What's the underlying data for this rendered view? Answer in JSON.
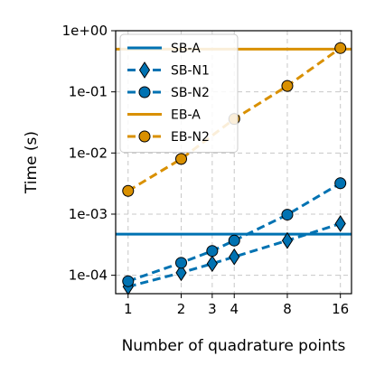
{
  "chart_data": {
    "type": "line",
    "xlabel": "Number of quadrature points",
    "ylabel": "Time (s)",
    "x_scale": "log2",
    "y_scale": "log10",
    "xlim": [
      0.85,
      18.5
    ],
    "ylim": [
      5e-05,
      1.0
    ],
    "x_ticks": [
      1,
      2,
      3,
      4,
      8,
      16
    ],
    "x_tick_labels": [
      "1",
      "2",
      "3",
      "4",
      "8",
      "16"
    ],
    "y_ticks": [
      0.0001,
      0.001,
      0.01,
      0.1,
      1.0
    ],
    "y_tick_labels": [
      "1e-04",
      "1e-03",
      "1e-02",
      "1e-01",
      "1e+00"
    ],
    "grid": true,
    "legend_position": "top-left",
    "colors": {
      "blue": "#0072b2",
      "orange": "#d99000"
    },
    "series": [
      {
        "name": "SB-A",
        "style": "solid",
        "marker": "none",
        "color": "#0072b2",
        "x": [
          0.85,
          18.5
        ],
        "y": [
          0.00047,
          0.00047
        ]
      },
      {
        "name": "SB-N1",
        "style": "dashed",
        "marker": "diamond",
        "color": "#0072b2",
        "x": [
          1,
          2,
          3,
          4,
          8,
          16
        ],
        "y": [
          6.5e-05,
          0.00011,
          0.000155,
          0.0002,
          0.00037,
          0.0007
        ]
      },
      {
        "name": "SB-N2",
        "style": "dashed",
        "marker": "circle",
        "color": "#0072b2",
        "x": [
          1,
          2,
          3,
          4,
          8,
          16
        ],
        "y": [
          8e-05,
          0.00016,
          0.00025,
          0.00037,
          0.00098,
          0.0032
        ]
      },
      {
        "name": "EB-A",
        "style": "solid",
        "marker": "none",
        "color": "#d99000",
        "x": [
          0.85,
          18.5
        ],
        "y": [
          0.5,
          0.5
        ]
      },
      {
        "name": "EB-N2",
        "style": "dashed",
        "marker": "circle",
        "color": "#d99000",
        "x": [
          1,
          2,
          4,
          8,
          16
        ],
        "y": [
          0.0024,
          0.008,
          0.036,
          0.125,
          0.52
        ]
      }
    ]
  }
}
